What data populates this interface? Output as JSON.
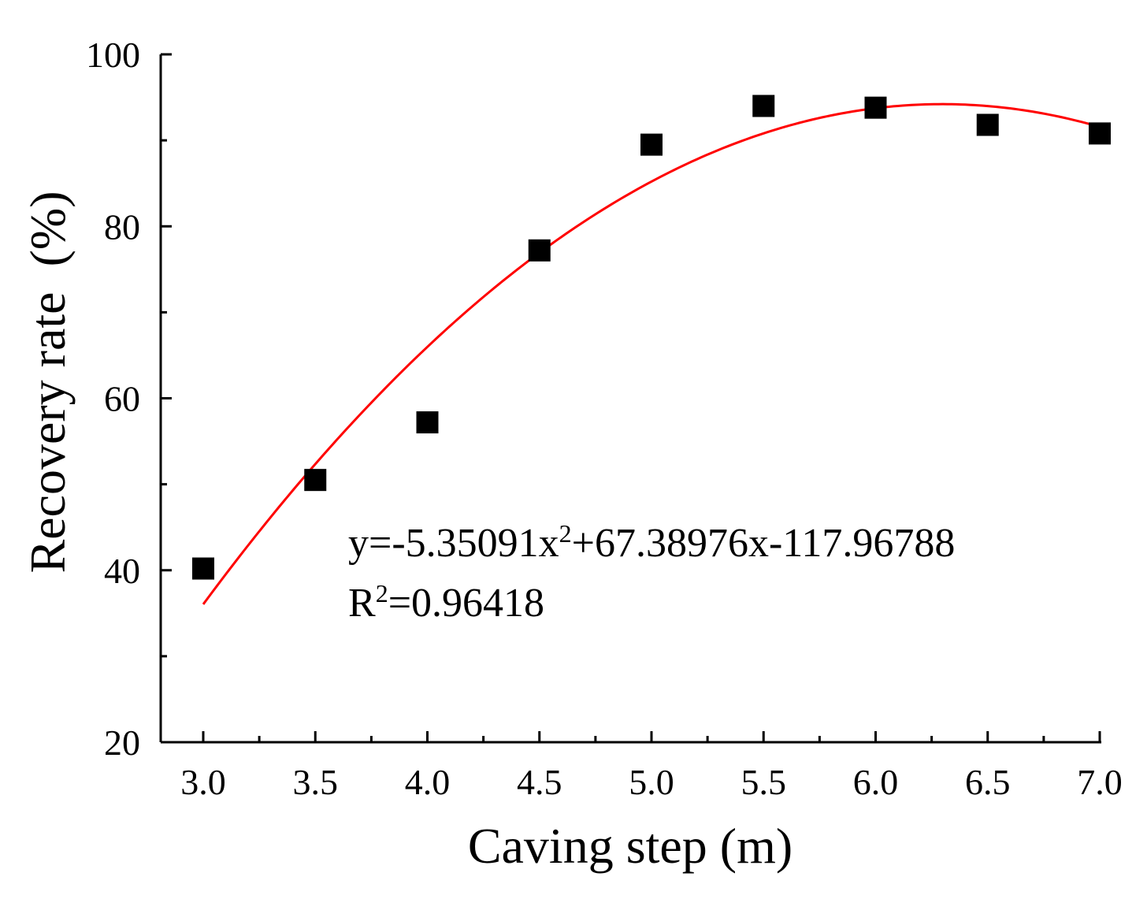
{
  "chart_data": {
    "type": "scatter",
    "xlabel": "Caving step (m)",
    "ylabel": "Recovery rate  (%)",
    "xlim": [
      2.8,
      7.0
    ],
    "ylim": [
      20,
      100
    ],
    "xticks": [
      "3.0",
      "3.5",
      "4.0",
      "4.5",
      "5.0",
      "5.5",
      "6.0",
      "6.5",
      "7.0"
    ],
    "yticks": [
      "20",
      "40",
      "60",
      "80",
      "100"
    ],
    "x": [
      3.0,
      3.5,
      4.0,
      4.5,
      5.0,
      5.5,
      6.0,
      6.5,
      7.0
    ],
    "y": [
      40.2,
      50.5,
      57.2,
      77.2,
      89.5,
      94.0,
      93.8,
      91.8,
      90.8
    ],
    "fit": {
      "type": "quadratic",
      "coefficients": [
        -5.35091,
        67.38976,
        -117.96788
      ],
      "color": "#ff0000",
      "equation_text": "y=-5.35091x",
      "equation_sup": "2",
      "equation_rest": "+67.38976x-117.96788",
      "r2_prefix": "R",
      "r2_sup": "2",
      "r2_rest": "=0.96418"
    },
    "marker_color": "#000000",
    "grid": false
  }
}
